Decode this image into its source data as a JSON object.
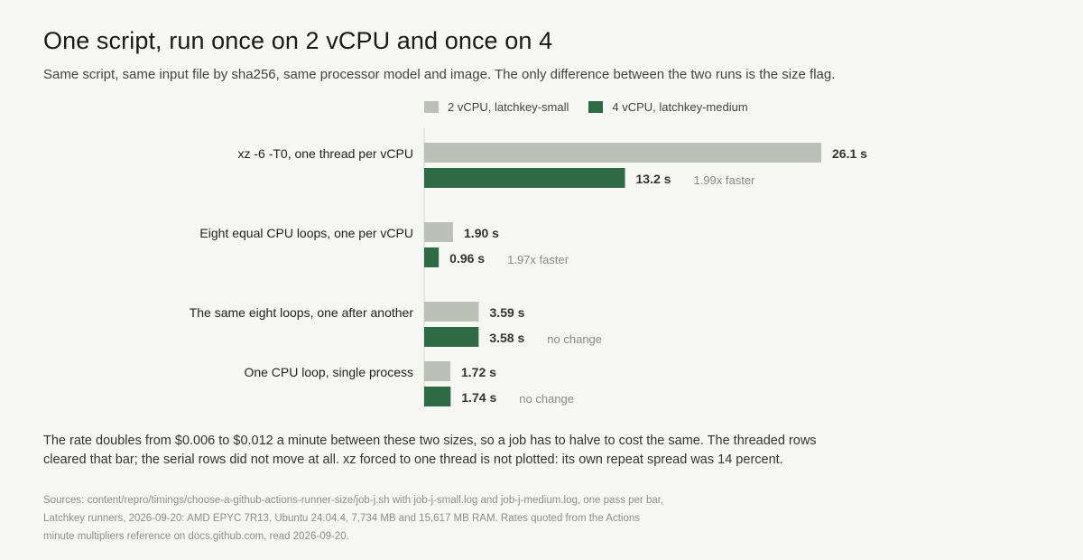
{
  "title": "One script, run once on 2 vCPU and once on 4",
  "subtitle": "Same script, same input file by sha256, same processor model and image. The only difference between the two runs is the size flag.",
  "colors": {
    "small": "#bcc0b8",
    "medium": "#2e6b44",
    "axis": "#d8d8d2"
  },
  "chart_data": {
    "type": "bar",
    "orientation": "horizontal",
    "grid": false,
    "legend_position": "top",
    "unit": "s",
    "xlim": [
      0,
      26.1
    ],
    "categories": [
      "xz -6 -T0, one thread per vCPU",
      "Eight equal CPU loops, one per vCPU",
      "The same eight loops, one after another",
      "One CPU loop, single process"
    ],
    "series": [
      {
        "name": "2 vCPU, latchkey-small",
        "values": [
          26.1,
          1.9,
          3.59,
          1.72
        ],
        "labels": [
          "26.1 s",
          "1.90 s",
          "3.59 s",
          "1.72 s"
        ]
      },
      {
        "name": "4 vCPU, latchkey-medium",
        "values": [
          13.2,
          0.96,
          3.58,
          1.74
        ],
        "labels": [
          "13.2 s",
          "0.96 s",
          "3.58 s",
          "1.74 s"
        ]
      }
    ],
    "annotations": [
      "1.99x faster",
      "1.97x faster",
      "no change",
      "no change"
    ]
  },
  "paragraph": "The rate doubles from $0.006 to $0.012 a minute between these two sizes, so a job has to halve to cost the same. The threaded rows cleared that bar; the serial rows did not move at all. xz forced to one thread is not plotted: its own repeat spread was 14 percent.",
  "sources": [
    "Sources: content/repro/timings/choose-a-github-actions-runner-size/job-j.sh with job-j-small.log and job-j-medium.log, one pass per bar,",
    "Latchkey runners, 2026-09-20: AMD EPYC 7R13, Ubuntu 24.04.4, 7,734 MB and 15,617 MB RAM. Rates quoted from the Actions",
    "minute multipliers reference on docs.github.com, read 2026-09-20."
  ]
}
